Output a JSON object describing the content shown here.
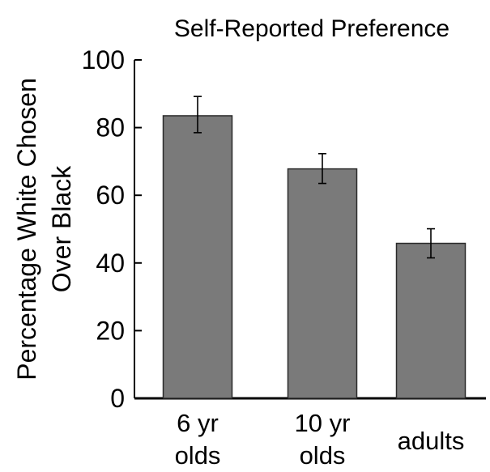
{
  "chart_data": {
    "type": "bar",
    "title": "Self-Reported Preference",
    "ylabel_lines": [
      "Percentage White Chosen",
      "Over Black"
    ],
    "xlabel": "",
    "categories": [
      {
        "lines": [
          "6 yr",
          "olds"
        ]
      },
      {
        "lines": [
          "10 yr",
          "olds"
        ]
      },
      {
        "lines": [
          "adults"
        ]
      }
    ],
    "values": [
      83.5,
      67.8,
      45.8
    ],
    "error_low": [
      78.5,
      63.5,
      41.5
    ],
    "error_high": [
      89.2,
      72.3,
      50.1
    ],
    "ylim": [
      0,
      100
    ],
    "yticks": [
      0,
      20,
      40,
      60,
      80,
      100
    ],
    "grid": false,
    "colors": {
      "bar_fill": "#7a7a7a",
      "bar_stroke": "#2a2a2a",
      "axis": "#000000",
      "background": "#ffffff"
    }
  }
}
